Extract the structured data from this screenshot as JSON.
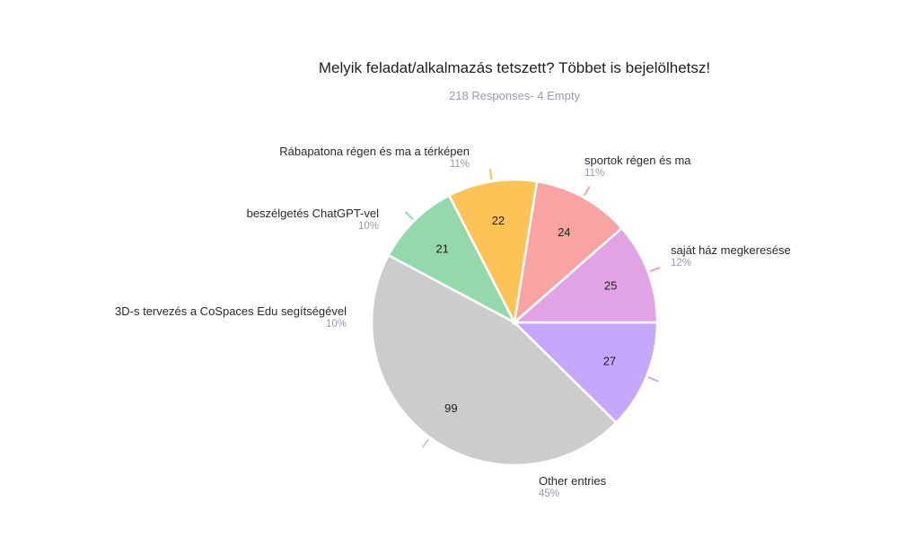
{
  "chart_data": {
    "type": "pie",
    "title": "Melyik feladat/alkalmazás tetszett? Többet is bejelölhetsz!",
    "subtitle": "218 Responses- 4 Empty",
    "slices": [
      {
        "label": "saját ház megkeresése",
        "value": 27,
        "percent": "12%",
        "color": "#c5a8fb"
      },
      {
        "label": "Other entries",
        "value": 99,
        "percent": "45%",
        "color": "#cccccc"
      },
      {
        "label": "3D-s tervezés a CoSpaces Edu segítségével",
        "value": 21,
        "percent": "10%",
        "color": "#93d9ab"
      },
      {
        "label": "beszélgetés ChatGPT-vel",
        "value": 22,
        "percent": "10%",
        "color": "#fdc356"
      },
      {
        "label": "Rábapatona régen és ma a térképen",
        "value": 24,
        "percent": "11%",
        "color": "#f9a3a3"
      },
      {
        "label": "sportok régen és ma",
        "value": 25,
        "percent": "11%",
        "color": "#e2a3e5"
      }
    ],
    "start": "right",
    "direction": "clockwise",
    "legend": "none"
  }
}
